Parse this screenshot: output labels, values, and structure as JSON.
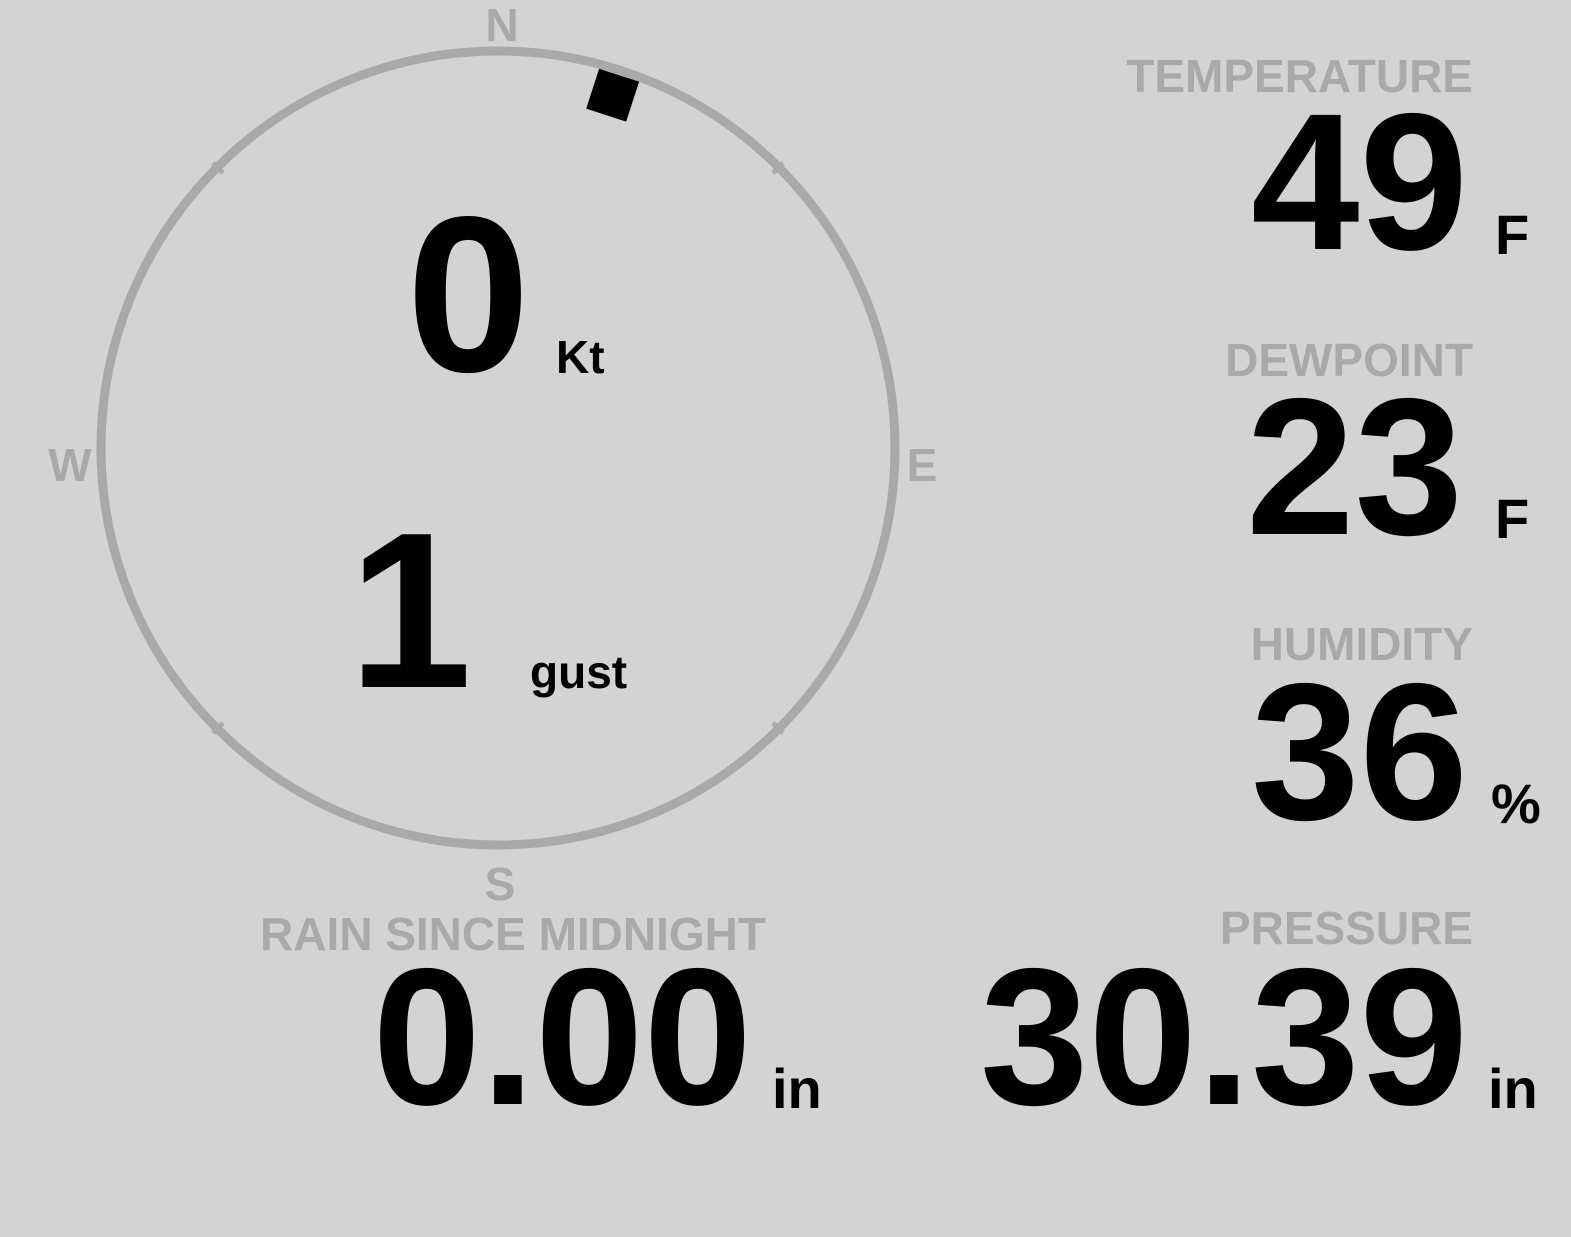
{
  "colors": {
    "background": "#d3d3d3",
    "label": "#a9a9a9",
    "value": "#000000"
  },
  "wind": {
    "direction_deg": 18,
    "speed": "0",
    "speed_unit": "Kt",
    "gust": "1",
    "gust_unit": "gust",
    "cardinals": {
      "n": "N",
      "e": "E",
      "s": "S",
      "w": "W"
    }
  },
  "temperature": {
    "label": "TEMPERATURE",
    "value": "49",
    "unit": "F"
  },
  "dewpoint": {
    "label": "DEWPOINT",
    "value": "23",
    "unit": "F"
  },
  "humidity": {
    "label": "HUMIDITY",
    "value": "36",
    "unit": "%"
  },
  "pressure": {
    "label": "PRESSURE",
    "value": "30.39",
    "unit": "in"
  },
  "rain": {
    "label": "RAIN SINCE MIDNIGHT",
    "value": "0.00",
    "unit": "in"
  }
}
